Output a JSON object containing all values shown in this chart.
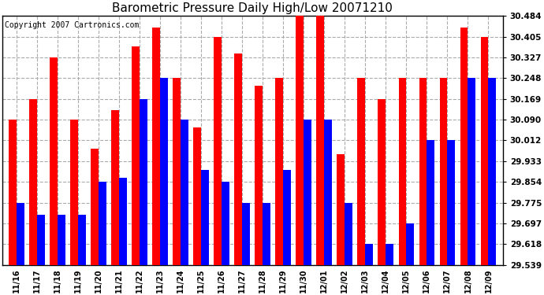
{
  "title": "Barometric Pressure Daily High/Low 20071210",
  "copyright": "Copyright 2007 Cartronics.com",
  "categories": [
    "11/16",
    "11/17",
    "11/18",
    "11/19",
    "11/20",
    "11/21",
    "11/22",
    "11/23",
    "11/24",
    "11/25",
    "11/26",
    "11/27",
    "11/28",
    "11/29",
    "11/30",
    "12/01",
    "12/02",
    "12/03",
    "12/04",
    "12/05",
    "12/06",
    "12/07",
    "12/08",
    "12/09"
  ],
  "highs": [
    30.09,
    30.169,
    30.327,
    30.09,
    29.98,
    30.127,
    30.37,
    30.44,
    30.248,
    30.06,
    30.405,
    30.342,
    30.22,
    30.248,
    30.484,
    30.484,
    29.96,
    30.248,
    30.169,
    30.248,
    30.248,
    30.248,
    30.44,
    30.405
  ],
  "lows": [
    29.775,
    29.73,
    29.73,
    29.73,
    29.854,
    29.87,
    30.169,
    30.248,
    30.09,
    29.9,
    29.854,
    29.775,
    29.775,
    29.9,
    30.09,
    30.09,
    29.775,
    29.618,
    29.618,
    29.697,
    30.012,
    30.012,
    30.248,
    30.248
  ],
  "ymin": 29.539,
  "ymax": 30.484,
  "yticks": [
    29.539,
    29.618,
    29.697,
    29.775,
    29.854,
    29.933,
    30.012,
    30.09,
    30.169,
    30.248,
    30.327,
    30.405,
    30.484
  ],
  "high_color": "#ff0000",
  "low_color": "#0000ff",
  "bg_color": "#ffffff",
  "grid_color": "#aaaaaa",
  "title_fontsize": 11,
  "copyright_fontsize": 7
}
